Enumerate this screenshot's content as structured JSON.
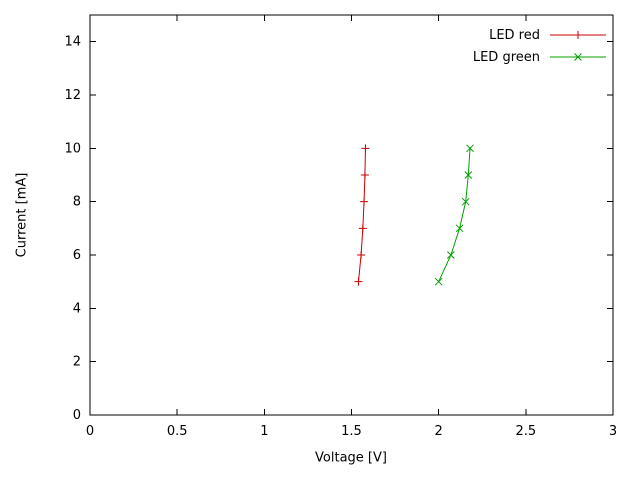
{
  "figure": {
    "background": "#ffffff",
    "border_color": "#000000",
    "text_color": "#000000"
  },
  "chart_data": {
    "type": "line",
    "title": "",
    "xlabel": "Voltage [V]",
    "ylabel": "Current [mA]",
    "xlim": [
      0,
      3
    ],
    "ylim": [
      0,
      15
    ],
    "xticks": [
      0,
      0.5,
      1,
      1.5,
      2,
      2.5,
      3
    ],
    "yticks": [
      0,
      2,
      4,
      6,
      8,
      10,
      12,
      14
    ],
    "grid": false,
    "legend_position": "top-right",
    "series": [
      {
        "name": "LED red",
        "color": "#cc0000",
        "marker": "plus",
        "points": [
          [
            1.54,
            5
          ],
          [
            1.555,
            6
          ],
          [
            1.565,
            7
          ],
          [
            1.572,
            8
          ],
          [
            1.577,
            9
          ],
          [
            1.58,
            10
          ]
        ]
      },
      {
        "name": "LED green",
        "color": "#00a000",
        "marker": "x",
        "points": [
          [
            2.0,
            5
          ],
          [
            2.07,
            6
          ],
          [
            2.12,
            7
          ],
          [
            2.155,
            8
          ],
          [
            2.17,
            9
          ],
          [
            2.18,
            10
          ]
        ]
      }
    ]
  }
}
